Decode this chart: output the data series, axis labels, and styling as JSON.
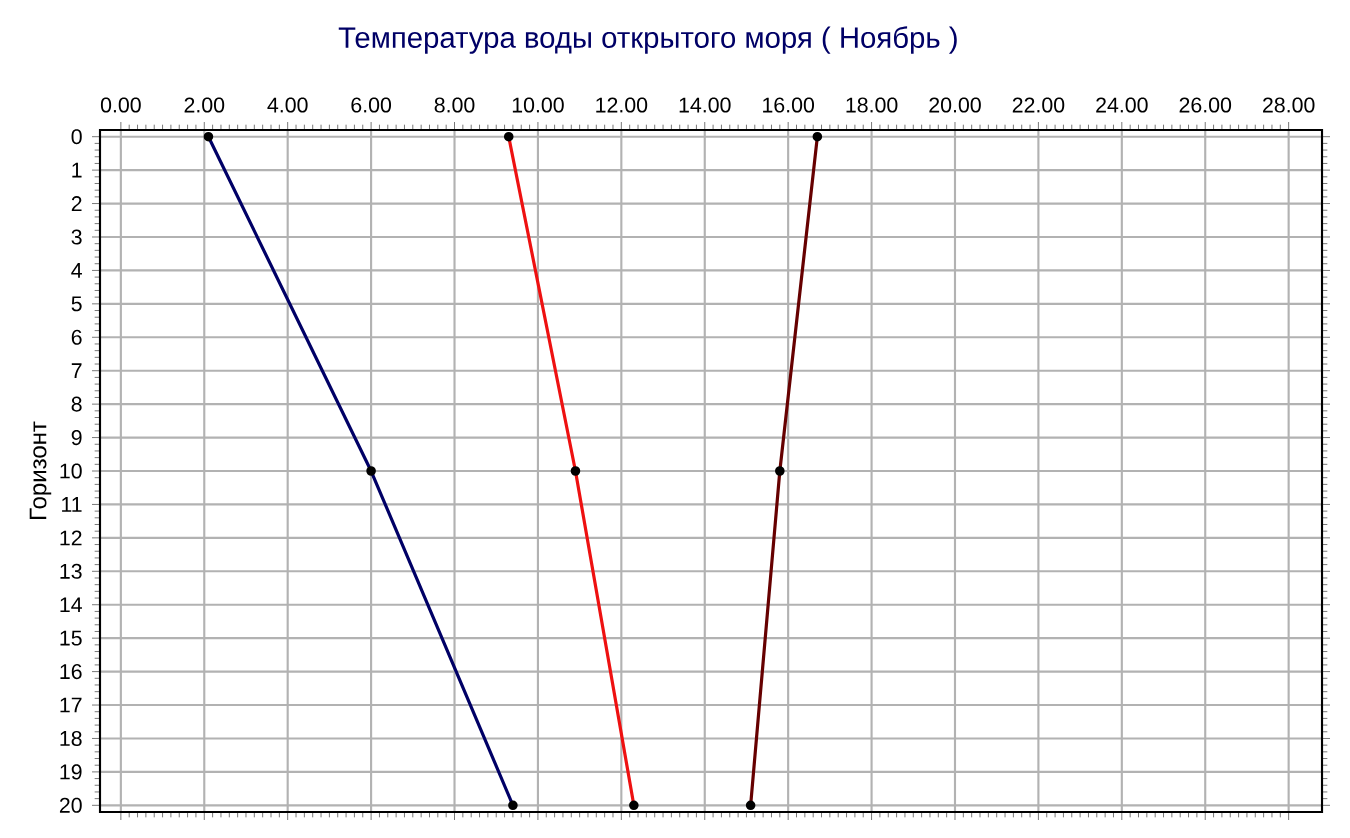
{
  "chart_data": {
    "type": "line",
    "title": "Температура воды открытого моря ( Ноябрь )",
    "ylabel": "Горизонт",
    "xlim": [
      -0.5,
      28.8
    ],
    "ylim": [
      20.2,
      -0.2
    ],
    "xticks": [
      {
        "value": 0,
        "label": "0.00"
      },
      {
        "value": 2,
        "label": "2.00"
      },
      {
        "value": 4,
        "label": "4.00"
      },
      {
        "value": 6,
        "label": "6.00"
      },
      {
        "value": 8,
        "label": "8.00"
      },
      {
        "value": 10,
        "label": "10.00"
      },
      {
        "value": 12,
        "label": "12.00"
      },
      {
        "value": 14,
        "label": "14.00"
      },
      {
        "value": 16,
        "label": "16.00"
      },
      {
        "value": 18,
        "label": "18.00"
      },
      {
        "value": 20,
        "label": "20.00"
      },
      {
        "value": 22,
        "label": "22.00"
      },
      {
        "value": 24,
        "label": "24.00"
      },
      {
        "value": 26,
        "label": "26.00"
      },
      {
        "value": 28,
        "label": "28.00"
      }
    ],
    "yticks": [
      0,
      1,
      2,
      3,
      4,
      5,
      6,
      7,
      8,
      9,
      10,
      11,
      12,
      13,
      14,
      15,
      16,
      17,
      18,
      19,
      20
    ],
    "grid": true,
    "marker": "circle",
    "line_style": "solid",
    "series": [
      {
        "color": "#000066",
        "x": [
          2.1,
          6.0,
          9.4
        ],
        "values": [
          0,
          10,
          20
        ]
      },
      {
        "color": "#ee1111",
        "x": [
          9.3,
          10.9,
          12.3
        ],
        "values": [
          0,
          10,
          20
        ]
      },
      {
        "color": "#660000",
        "x": [
          16.7,
          15.8,
          15.1
        ],
        "values": [
          0,
          10,
          20
        ]
      }
    ]
  }
}
